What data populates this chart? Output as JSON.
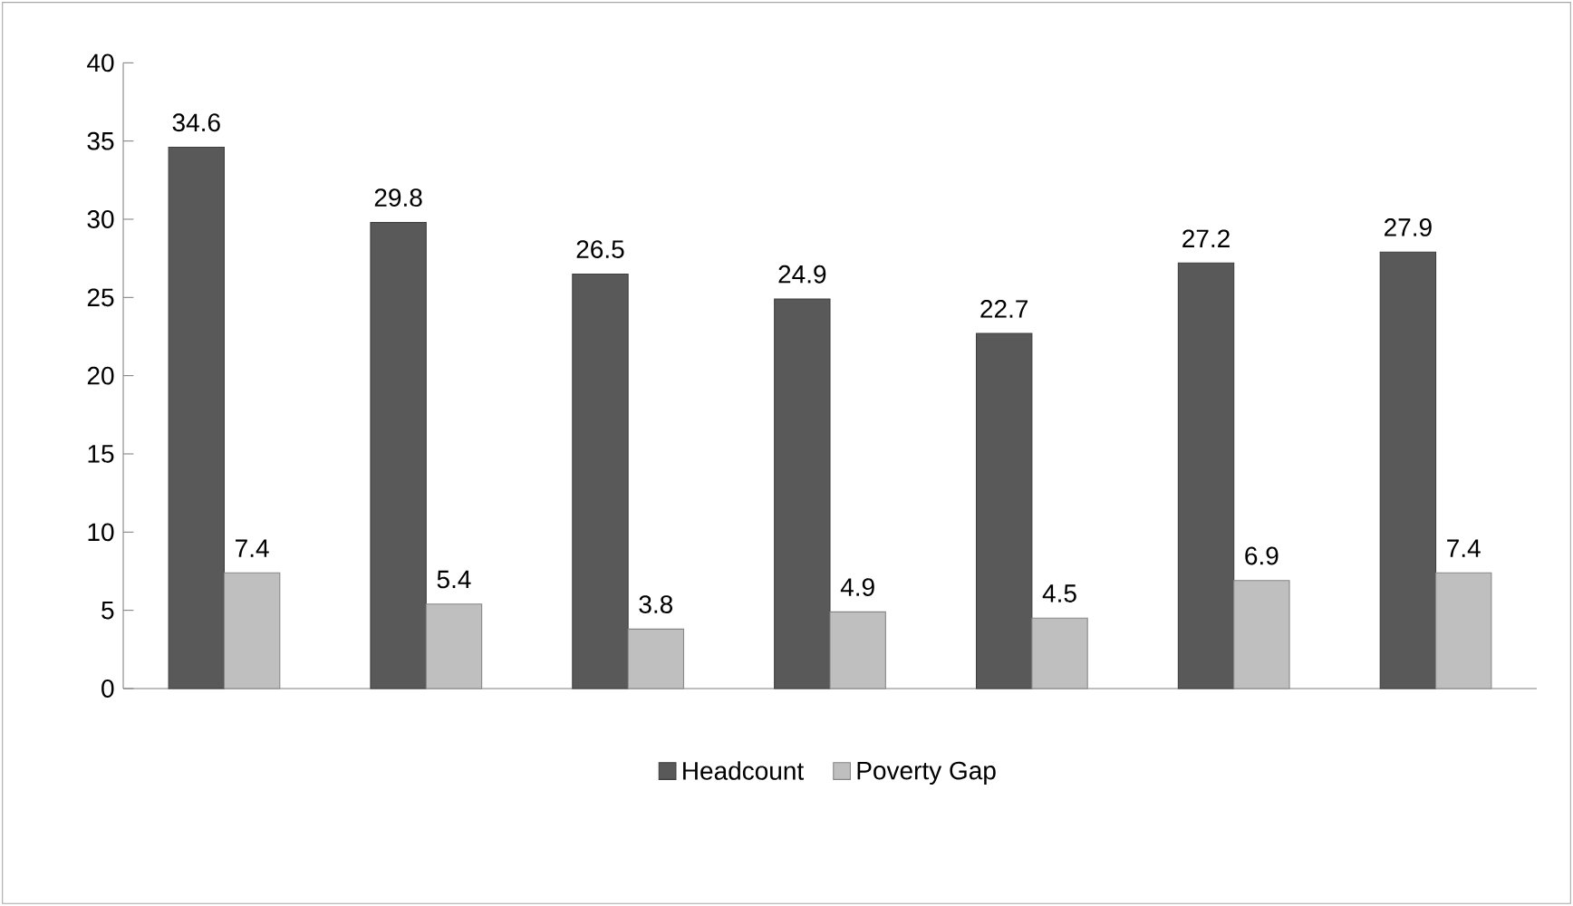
{
  "chart_data": {
    "type": "bar",
    "categories": [
      null,
      null,
      null,
      null,
      null,
      null,
      null
    ],
    "series": [
      {
        "name": "Headcount",
        "color": "#595959",
        "values": [
          34.6,
          29.8,
          26.5,
          24.9,
          22.7,
          27.2,
          27.9
        ]
      },
      {
        "name": "Poverty Gap",
        "color": "#bfbfbf",
        "values": [
          7.4,
          5.4,
          3.8,
          4.9,
          4.5,
          6.9,
          7.4
        ]
      }
    ],
    "ylim": [
      0,
      40
    ],
    "yticks": [
      0,
      5,
      10,
      15,
      20,
      25,
      30,
      35,
      40
    ],
    "data_labels": true,
    "legend": "bottom",
    "grid": false
  }
}
